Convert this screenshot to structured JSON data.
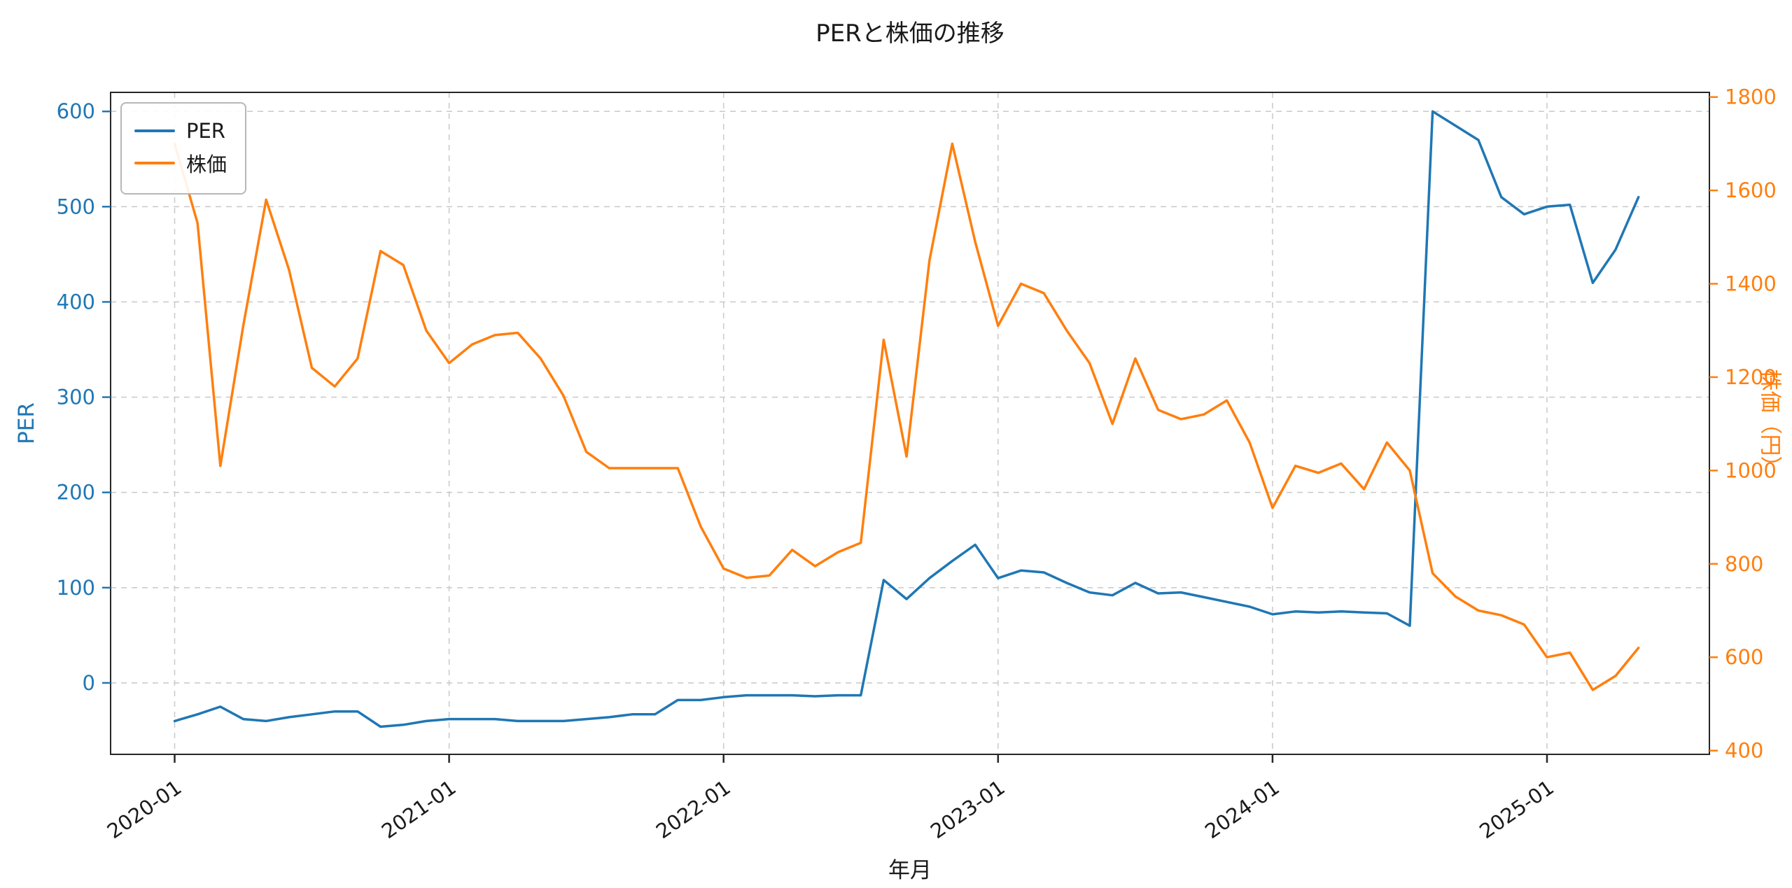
{
  "title": "PERと株価の推移",
  "chart_data": {
    "type": "line",
    "title": "PERと株価の推移",
    "xlabel": "年月",
    "ylabel_left": "PER",
    "ylabel_right": "株価（円）",
    "grid": true,
    "legend": {
      "position": "upper-left"
    },
    "x_range": [
      -2.8,
      67.1
    ],
    "x_ticks": [
      {
        "index": 0,
        "label": "2020-01"
      },
      {
        "index": 12,
        "label": "2021-01"
      },
      {
        "index": 24,
        "label": "2022-01"
      },
      {
        "index": 36,
        "label": "2023-01"
      },
      {
        "index": 48,
        "label": "2024-01"
      },
      {
        "index": 60,
        "label": "2025-01"
      }
    ],
    "x": [
      "2020-01",
      "2020-02",
      "2020-03",
      "2020-04",
      "2020-05",
      "2020-06",
      "2020-07",
      "2020-08",
      "2020-09",
      "2020-10",
      "2020-11",
      "2020-12",
      "2021-01",
      "2021-02",
      "2021-03",
      "2021-04",
      "2021-05",
      "2021-06",
      "2021-07",
      "2021-08",
      "2021-09",
      "2021-10",
      "2021-11",
      "2021-12",
      "2022-01",
      "2022-02",
      "2022-03",
      "2022-04",
      "2022-05",
      "2022-06",
      "2022-07",
      "2022-08",
      "2022-09",
      "2022-10",
      "2022-11",
      "2022-12",
      "2023-01",
      "2023-02",
      "2023-03",
      "2023-04",
      "2023-05",
      "2023-06",
      "2023-07",
      "2023-08",
      "2023-09",
      "2023-10",
      "2023-11",
      "2023-12",
      "2024-01",
      "2024-02",
      "2024-03",
      "2024-04",
      "2024-05",
      "2024-06",
      "2024-07",
      "2024-08",
      "2024-09",
      "2024-10",
      "2024-11",
      "2024-12",
      "2025-01",
      "2025-02",
      "2025-03",
      "2025-04",
      "2025-05"
    ],
    "left_axis": {
      "color": "#1f77b4",
      "ticks": [
        0,
        100,
        200,
        300,
        400,
        500,
        600
      ],
      "range": [
        -75,
        620
      ]
    },
    "right_axis": {
      "color": "#ff7f0e",
      "ticks": [
        400,
        600,
        800,
        1000,
        1200,
        1400,
        1600,
        1800
      ],
      "range": [
        392,
        1810
      ]
    },
    "series": [
      {
        "name": "PER",
        "axis": "left",
        "color": "#1f77b4",
        "values": [
          -40,
          -33,
          -25,
          -38,
          -40,
          -36,
          -33,
          -30,
          -30,
          -46,
          -44,
          -40,
          -38,
          -38,
          -38,
          -40,
          -40,
          -40,
          -38,
          -36,
          -33,
          -33,
          -18,
          -18,
          -15,
          -13,
          -13,
          -13,
          -14,
          -13,
          -13,
          108,
          88,
          110,
          128,
          145,
          110,
          118,
          116,
          105,
          95,
          92,
          105,
          94,
          95,
          90,
          85,
          80,
          72,
          75,
          74,
          75,
          74,
          73,
          60,
          600,
          585,
          570,
          510,
          492,
          500,
          502,
          420,
          455,
          510
        ]
      },
      {
        "name": "株価",
        "axis": "right",
        "color": "#ff7f0e",
        "values": [
          1700,
          1530,
          1010,
          1310,
          1580,
          1430,
          1220,
          1180,
          1240,
          1470,
          1440,
          1300,
          1230,
          1270,
          1290,
          1295,
          1240,
          1160,
          1040,
          1005,
          1005,
          1005,
          1005,
          880,
          790,
          770,
          775,
          830,
          795,
          825,
          845,
          1280,
          1030,
          1450,
          1700,
          1490,
          1310,
          1400,
          1380,
          1300,
          1230,
          1100,
          1240,
          1130,
          1110,
          1120,
          1150,
          1060,
          920,
          1010,
          995,
          1015,
          960,
          1060,
          1000,
          780,
          730,
          700,
          690,
          670,
          600,
          610,
          530,
          560,
          620
        ]
      }
    ]
  }
}
